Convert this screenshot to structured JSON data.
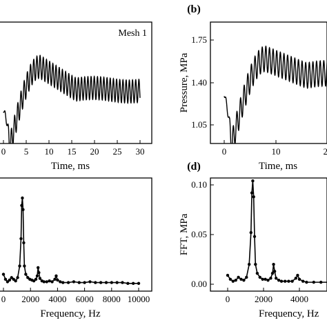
{
  "chart_data": [
    {
      "panel": "a",
      "type": "line",
      "annotation": "Mesh 1",
      "xlabel": "Time, ms",
      "ylabel": "",
      "xlim": [
        0,
        30
      ],
      "ylim": [
        0.9,
        1.9
      ],
      "xticks": [
        "0",
        "5",
        "10",
        "15",
        "20",
        "25",
        "30"
      ],
      "yticks": [],
      "signal": {
        "start": 1.32,
        "dip": 1.0,
        "peak": 1.88,
        "settle": 1.62,
        "amplitude": 0.26,
        "period_ms": 0.7
      },
      "grid": false
    },
    {
      "panel": "b",
      "type": "line",
      "title": "(b)",
      "annotation": "",
      "xlabel": "Time, ms",
      "ylabel": "Pressure, MPa",
      "xlim": [
        0,
        30
      ],
      "ylim": [
        0.9,
        1.9
      ],
      "xticks": [
        "0",
        "10",
        "20"
      ],
      "yticks": [
        "1.05",
        "1.40",
        "1.75"
      ],
      "ytick_values": [
        1.05,
        1.4,
        1.75
      ],
      "signal": {
        "start": 1.35,
        "dip": 1.0,
        "peak": 1.7,
        "settle": 1.56,
        "amplitude": 0.21,
        "period_ms": 0.7
      },
      "grid": false
    },
    {
      "panel": "c",
      "type": "line",
      "xlabel": "Frequency, Hz",
      "ylabel": "",
      "xlim": [
        -400,
        10500
      ],
      "ylim": [
        -0.01,
        0.11
      ],
      "xticks": [
        "0",
        "2000",
        "4000",
        "6000",
        "8000",
        "10000"
      ],
      "yticks": [],
      "x": [
        0,
        150,
        300,
        450,
        600,
        750,
        900,
        1050,
        1200,
        1300,
        1350,
        1400,
        1450,
        1500,
        1550,
        1650,
        1800,
        1950,
        2100,
        2250,
        2400,
        2500,
        2560,
        2620,
        2700,
        2850,
        3000,
        3200,
        3400,
        3600,
        3800,
        3900,
        4000,
        4200,
        4400,
        4800,
        5200,
        5600,
        6000,
        6400,
        6800,
        7200,
        7600,
        8000,
        8400,
        8800,
        9200,
        9600,
        10000
      ],
      "y": [
        0.012,
        0.006,
        0.003,
        0.005,
        0.008,
        0.006,
        0.004,
        0.008,
        0.022,
        0.055,
        0.095,
        0.104,
        0.09,
        0.05,
        0.022,
        0.012,
        0.008,
        0.006,
        0.005,
        0.004,
        0.006,
        0.01,
        0.02,
        0.014,
        0.007,
        0.004,
        0.003,
        0.003,
        0.004,
        0.003,
        0.006,
        0.01,
        0.005,
        0.003,
        0.002,
        0.002,
        0.003,
        0.002,
        0.002,
        0.003,
        0.002,
        0.002,
        0.002,
        0.002,
        0.002,
        0.002,
        0.001,
        0.001,
        0.001
      ],
      "grid": false
    },
    {
      "panel": "d",
      "type": "line",
      "title": "(d)",
      "xlabel": "Frequency, Hz",
      "ylabel": "FFT, MPa",
      "xlim": [
        -400,
        10500
      ],
      "ylim": [
        -0.01,
        0.11
      ],
      "xticks": [
        "0",
        "2000",
        "4000"
      ],
      "yticks": [
        "0.00",
        "0.05",
        "0.10"
      ],
      "ytick_values": [
        0,
        0.05,
        0.1
      ],
      "x": [
        0,
        150,
        300,
        450,
        600,
        750,
        900,
        1050,
        1200,
        1300,
        1350,
        1400,
        1450,
        1500,
        1550,
        1650,
        1800,
        1950,
        2100,
        2250,
        2400,
        2500,
        2560,
        2620,
        2700,
        2850,
        3000,
        3200,
        3400,
        3600,
        3800,
        3900,
        4000,
        4200,
        4400,
        4800,
        5200,
        5600,
        6000,
        6400,
        6800,
        7200,
        7600,
        8000,
        8400,
        8800,
        9200,
        9600,
        10000
      ],
      "y": [
        0.009,
        0.005,
        0.003,
        0.004,
        0.007,
        0.005,
        0.004,
        0.007,
        0.02,
        0.052,
        0.092,
        0.104,
        0.088,
        0.048,
        0.02,
        0.011,
        0.007,
        0.005,
        0.005,
        0.004,
        0.006,
        0.011,
        0.02,
        0.013,
        0.006,
        0.004,
        0.003,
        0.003,
        0.003,
        0.003,
        0.006,
        0.009,
        0.005,
        0.003,
        0.002,
        0.002,
        0.002,
        0.002,
        0.002,
        0.002,
        0.002,
        0.002,
        0.002,
        0.002,
        0.002,
        0.002,
        0.001,
        0.001,
        0.001
      ],
      "grid": false
    }
  ]
}
